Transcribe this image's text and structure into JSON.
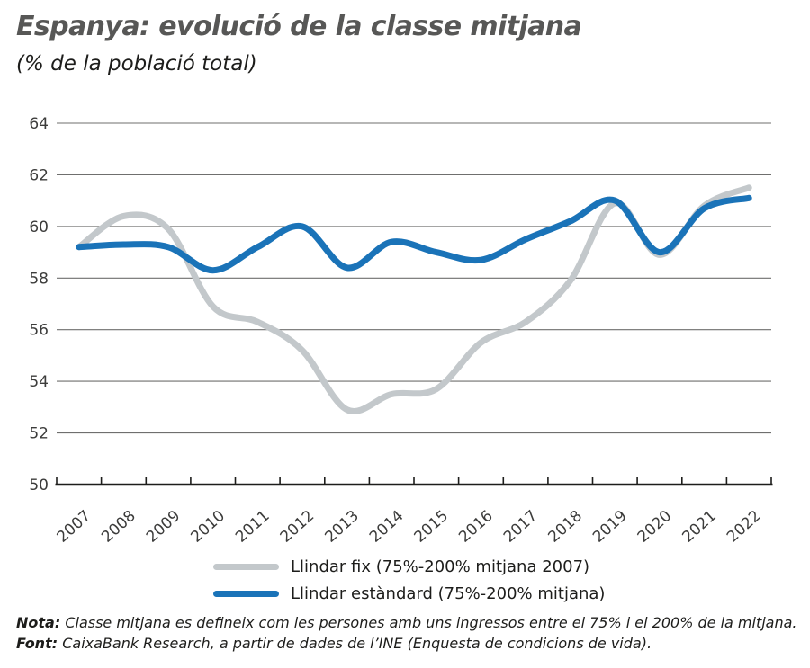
{
  "header": {
    "title": "Espanya: evolució de la classe mitjana",
    "subtitle": "(% de la població total)"
  },
  "chart_data": {
    "type": "line",
    "title": "Espanya: evolució de la classe mitjana",
    "units_label": "(% de la població total)",
    "x": [
      2007,
      2008,
      2009,
      2010,
      2011,
      2012,
      2013,
      2014,
      2015,
      2016,
      2017,
      2018,
      2019,
      2020,
      2021,
      2022
    ],
    "series": [
      {
        "name": "Llindar fix (75%-200% mitjana 2007)",
        "color": "#c3c8cb",
        "values": [
          59.2,
          60.4,
          59.9,
          56.9,
          56.3,
          55.2,
          52.9,
          53.5,
          53.7,
          55.5,
          56.3,
          57.9,
          60.9,
          58.9,
          60.8,
          61.5
        ]
      },
      {
        "name": "Llindar estàndard (75%-200% mitjana)",
        "color": "#1a73b8",
        "values": [
          59.2,
          59.3,
          59.2,
          58.3,
          59.2,
          60.0,
          58.4,
          59.4,
          59.0,
          58.7,
          59.5,
          60.2,
          61.0,
          59.0,
          60.7,
          61.1
        ]
      }
    ],
    "ylim": [
      50,
      64
    ],
    "yticks": [
      50,
      52,
      54,
      56,
      58,
      60,
      62,
      64
    ],
    "grid": "horizontal-only",
    "legend_position": "bottom",
    "line_style": "smooth"
  },
  "footer": {
    "nota_label": "Nota:",
    "nota_text": " Classe mitjana es defineix com les persones amb uns ingressos entre el 75% i el 200% de la mitjana.",
    "font_label": "Font:",
    "font_text": " CaixaBank Research, a partir de dades de l’INE (Enquesta de condicions de vida)."
  },
  "colors": {
    "accent_blue": "#1a73b8",
    "line_gray": "#c3c8cb",
    "title_gray": "#575756",
    "axis_text": "#3c3c3b",
    "gridline": "#6f6f6e",
    "axis_line": "#1d1d1b",
    "background": "#ffffff"
  }
}
